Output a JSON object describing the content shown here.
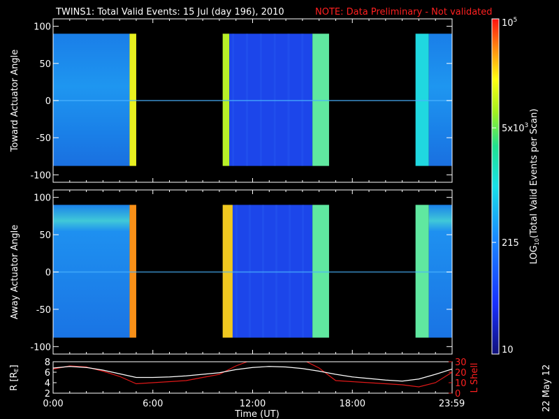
{
  "title": "TWINS1: Total Valid Events: 15 Jul (day 196), 2010",
  "note": "NOTE: Data Preliminary - Not validated",
  "date_stamp": "22 May 12",
  "colors": {
    "note": "#ff2020",
    "r_line": "#ffffff",
    "lshell_line": "#e01818",
    "background": "#000000"
  },
  "chart_data": [
    {
      "type": "heatmap",
      "name": "toward",
      "ylabel": "Toward Actuator Angle",
      "ylim": [
        -110,
        110
      ],
      "yticks": [
        100,
        50,
        0,
        -50,
        -100
      ],
      "angle_range": [
        -88,
        90
      ],
      "xlim": [
        0,
        24
      ],
      "data_segments": [
        {
          "start": 0.0,
          "end": 4.6,
          "level": "low-blue"
        },
        {
          "start": 4.6,
          "end": 5.0,
          "level": "yellow"
        },
        {
          "start": 10.2,
          "end": 10.6,
          "level": "yellow-green"
        },
        {
          "start": 10.6,
          "end": 15.6,
          "level": "deep-blue"
        },
        {
          "start": 15.6,
          "end": 16.6,
          "level": "cyan-yellow"
        },
        {
          "start": 21.8,
          "end": 22.6,
          "level": "cyan"
        },
        {
          "start": 22.6,
          "end": 24.0,
          "level": "low-blue"
        }
      ]
    },
    {
      "type": "heatmap",
      "name": "away",
      "ylabel": "Away Actuator Angle",
      "ylim": [
        -110,
        110
      ],
      "yticks": [
        100,
        50,
        0,
        -50,
        -100
      ],
      "angle_range": [
        -88,
        90
      ],
      "xlim": [
        0,
        24
      ],
      "data_segments": [
        {
          "start": 0.0,
          "end": 4.6,
          "level": "low-blue"
        },
        {
          "start": 4.6,
          "end": 5.0,
          "level": "orange"
        },
        {
          "start": 10.2,
          "end": 10.8,
          "level": "yellow-orange"
        },
        {
          "start": 10.8,
          "end": 15.6,
          "level": "deep-blue"
        },
        {
          "start": 15.6,
          "end": 16.6,
          "level": "cyan-yellow"
        },
        {
          "start": 21.8,
          "end": 22.6,
          "level": "cyan-yellow"
        },
        {
          "start": 22.6,
          "end": 24.0,
          "level": "low-blue"
        }
      ]
    },
    {
      "type": "line",
      "name": "orbit",
      "ylabel_left": "R [R",
      "ylabel_left_sub": "E",
      "ylabel_left_end": "]",
      "ylabel_right": "L Shell",
      "ylim_left": [
        2,
        8
      ],
      "yticks_left": [
        8,
        6,
        4,
        2
      ],
      "ylim_right": [
        0,
        30
      ],
      "yticks_right": [
        30,
        20,
        10,
        0
      ],
      "xlim": [
        0,
        24
      ],
      "x": [
        0,
        1,
        2,
        3,
        4,
        5,
        6,
        7,
        8,
        9,
        10,
        11,
        12,
        13,
        14,
        15,
        16,
        17,
        18,
        19,
        20,
        21,
        22,
        23,
        24
      ],
      "r_values": [
        6.8,
        7.1,
        6.9,
        6.4,
        5.7,
        5.0,
        5.0,
        5.1,
        5.3,
        5.6,
        5.9,
        6.5,
        6.9,
        7.1,
        7.0,
        6.7,
        6.2,
        5.6,
        5.1,
        4.8,
        4.5,
        4.3,
        4.7,
        5.6,
        6.6
      ],
      "lshell_values": [
        23,
        26,
        25,
        21,
        16,
        9,
        10,
        11,
        12,
        15,
        18,
        26,
        32,
        32,
        32,
        32,
        24,
        12,
        11,
        10,
        9,
        8,
        6,
        10,
        20
      ]
    }
  ],
  "xaxis": {
    "label": "Time (UT)",
    "ticks": [
      {
        "value": 0,
        "label": "0:00"
      },
      {
        "value": 6,
        "label": "6:00"
      },
      {
        "value": 12,
        "label": "12:00"
      },
      {
        "value": 18,
        "label": "18:00"
      },
      {
        "value": 23.983,
        "label": "23:59"
      }
    ]
  },
  "colorbar": {
    "label": "LOG",
    "label_sub": "10",
    "label_rest": "(Total Valid Events per Scan)",
    "range": [
      10,
      100000
    ],
    "scale": "log",
    "ticks": [
      {
        "value": 100000,
        "label": "10",
        "sup": "5"
      },
      {
        "value": 5000,
        "label": "5x10",
        "sup": "3"
      },
      {
        "value": 215,
        "label": "215",
        "sup": ""
      },
      {
        "value": 10,
        "label": "10",
        "sup": ""
      }
    ]
  }
}
